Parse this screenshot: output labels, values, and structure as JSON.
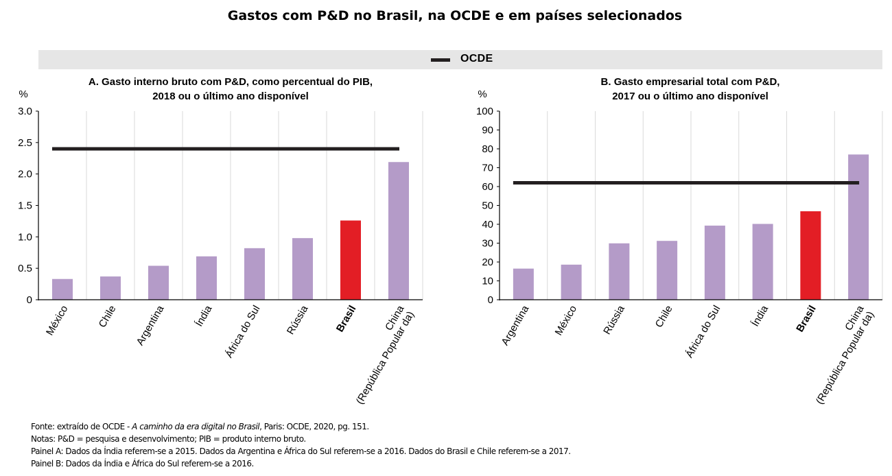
{
  "title": "Gastos com P&D no Brasil, na OCDE e em países selecionados",
  "legend": {
    "label": "OCDE",
    "color": "#231f20"
  },
  "colors": {
    "bar": "#b49bc8",
    "highlight": "#e31e25",
    "reference": "#231f20"
  },
  "chart_data": [
    {
      "type": "bar",
      "title": [
        "A. Gasto interno bruto com P&D, como percentual do PIB,",
        "2018 ou o último ano disponível"
      ],
      "ylabel": "%",
      "ylim": [
        0,
        3.0
      ],
      "yticks": [
        "0",
        "0.5",
        "1.0",
        "1.5",
        "2.0",
        "2.5",
        "3.0"
      ],
      "categories": [
        [
          "México"
        ],
        [
          "Chile"
        ],
        [
          "Argentina"
        ],
        [
          "Índia"
        ],
        [
          "África do Sul"
        ],
        [
          "Rússia"
        ],
        [
          "Brasil"
        ],
        [
          "China",
          "(República Popular da)"
        ]
      ],
      "values": [
        0.33,
        0.37,
        0.54,
        0.69,
        0.82,
        0.98,
        1.26,
        2.19
      ],
      "highlight_index": 6,
      "reference_line": {
        "name": "OCDE",
        "value": 2.4
      }
    },
    {
      "type": "bar",
      "title": [
        "B. Gasto empresarial total com P&D,",
        "2017 ou o último ano disponível"
      ],
      "ylabel": "%",
      "ylim": [
        0,
        100
      ],
      "yticks": [
        "0",
        "10",
        "20",
        "30",
        "40",
        "50",
        "60",
        "70",
        "80",
        "90",
        "100"
      ],
      "categories": [
        [
          "Argentina"
        ],
        [
          "México"
        ],
        [
          "Rússia"
        ],
        [
          "Chile"
        ],
        [
          "África do Sul"
        ],
        [
          "Índia"
        ],
        [
          "Brasil"
        ],
        [
          "China",
          "(República Popular da)"
        ]
      ],
      "values": [
        16.5,
        18.6,
        29.9,
        31.2,
        39.3,
        40.2,
        46.9,
        77
      ],
      "highlight_index": 6,
      "reference_line": {
        "name": "OCDE",
        "value": 62
      }
    }
  ],
  "footnotes": {
    "source_prefix": "Fonte: extraído de OCDE - ",
    "source_italic": "A caminho da era digital no Brasil",
    "source_suffix": ", Paris: OCDE, 2020,  pg. 151.",
    "notes": "Notas: P&D = pesquisa e desenvolvimento; PIB = produto interno bruto.",
    "panel_a": "Painel A: Dados da Índia referem-se a 2015.  Dados da Argentina e África do Sul referem-se a 2016.  Dados do Brasil e Chile referem-se a 2017.",
    "panel_b": "Painel B: Dados da Índia e África do Sul referem-se a 2016."
  }
}
